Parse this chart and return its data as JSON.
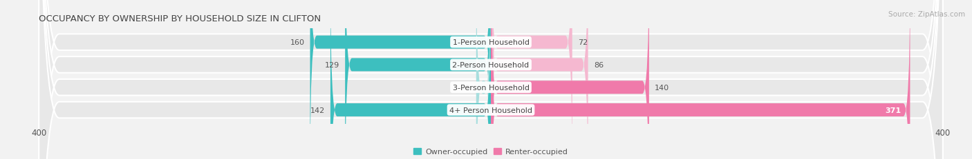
{
  "title": "OCCUPANCY BY OWNERSHIP BY HOUSEHOLD SIZE IN CLIFTON",
  "source": "Source: ZipAtlas.com",
  "categories": [
    "1-Person Household",
    "2-Person Household",
    "3-Person Household",
    "4+ Person Household"
  ],
  "owner_values": [
    160,
    129,
    13,
    142
  ],
  "renter_values": [
    72,
    86,
    140,
    371
  ],
  "owner_color": "#3dbfbf",
  "owner_color_light": "#a8dede",
  "renter_color": "#f07aaa",
  "renter_color_light": "#f5b8d0",
  "axis_max": 400,
  "bg_color": "#f2f2f2",
  "row_bg_color": "#e8e8e8",
  "title_fontsize": 9.5,
  "source_fontsize": 7.5,
  "label_fontsize": 8,
  "value_fontsize": 8,
  "tick_fontsize": 8.5,
  "legend_fontsize": 8
}
